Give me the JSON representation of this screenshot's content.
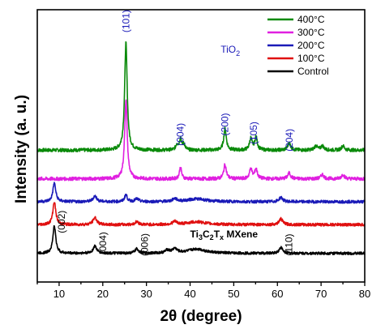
{
  "chart_data": {
    "type": "line",
    "xlabel": "2θ (degree)",
    "ylabel": "Intensity (a. u.)",
    "xlim": [
      5,
      80
    ],
    "xticks": [
      10,
      20,
      30,
      40,
      50,
      60,
      70,
      80
    ],
    "minor_xtick_step": 5,
    "legend_position": "top-right",
    "series": [
      {
        "name": "400°C",
        "color": "#0a8a0a",
        "baseline": 92,
        "noise": 1.2,
        "peaks": [
          [
            25.3,
            75,
            0.35
          ],
          [
            37.0,
            4,
            0.3
          ],
          [
            37.8,
            8,
            0.3
          ],
          [
            38.6,
            4,
            0.3
          ],
          [
            48.0,
            15,
            0.35
          ],
          [
            53.9,
            8,
            0.35
          ],
          [
            55.1,
            9,
            0.35
          ],
          [
            62.7,
            5,
            0.4
          ],
          [
            68.8,
            3,
            0.4
          ],
          [
            70.3,
            3,
            0.4
          ],
          [
            75.0,
            3,
            0.4
          ]
        ]
      },
      {
        "name": "300°C",
        "color": "#e020e0",
        "baseline": 72,
        "noise": 1.2,
        "peaks": [
          [
            25.3,
            55,
            0.35
          ],
          [
            37.8,
            8,
            0.3
          ],
          [
            48.0,
            10,
            0.35
          ],
          [
            53.9,
            7,
            0.35
          ],
          [
            55.1,
            7,
            0.35
          ],
          [
            62.7,
            4,
            0.4
          ],
          [
            70.3,
            3,
            0.4
          ],
          [
            75.0,
            3,
            0.4
          ]
        ]
      },
      {
        "name": "200°C",
        "color": "#1a1ab8",
        "baseline": 56,
        "noise": 1.0,
        "peaks": [
          [
            8.9,
            13,
            0.4
          ],
          [
            18.2,
            4,
            0.5
          ],
          [
            25.3,
            5,
            0.35
          ],
          [
            27.8,
            2,
            0.5
          ],
          [
            36.5,
            2,
            0.6
          ],
          [
            41.5,
            2,
            2.5
          ],
          [
            60.8,
            3,
            0.5
          ]
        ]
      },
      {
        "name": "100°C",
        "color": "#e01010",
        "baseline": 40,
        "noise": 1.0,
        "peaks": [
          [
            8.9,
            16,
            0.4
          ],
          [
            18.2,
            5,
            0.5
          ],
          [
            27.8,
            2,
            0.5
          ],
          [
            36.5,
            2,
            0.6
          ],
          [
            41.5,
            2,
            2.5
          ],
          [
            60.8,
            4,
            0.5
          ]
        ]
      },
      {
        "name": "Control",
        "color": "#000000",
        "baseline": 20,
        "noise": 0.9,
        "peaks": [
          [
            8.9,
            19,
            0.4
          ],
          [
            18.2,
            5,
            0.5
          ],
          [
            27.8,
            3,
            0.5
          ],
          [
            34.8,
            2,
            0.6
          ],
          [
            36.5,
            3,
            0.6
          ],
          [
            41.5,
            3,
            2.5
          ],
          [
            60.8,
            4,
            0.5
          ]
        ]
      }
    ],
    "annotations": [
      {
        "text": "(101)",
        "x": 25.3,
        "y": 182,
        "color": "#1a1ab8"
      },
      {
        "text": "(004)",
        "x": 37.8,
        "y": 103,
        "color": "#1a1ab8"
      },
      {
        "text": "(200)",
        "x": 48.0,
        "y": 110,
        "color": "#1a1ab8"
      },
      {
        "text": "(105)",
        "x": 54.6,
        "y": 104,
        "color": "#1a1ab8"
      },
      {
        "text": "(204)",
        "x": 62.7,
        "y": 99,
        "color": "#1a1ab8"
      },
      {
        "text": "(002)",
        "x": 10.6,
        "y": 42,
        "color": "#000000"
      },
      {
        "text": "(004)",
        "x": 20.0,
        "y": 27,
        "color": "#000000"
      },
      {
        "text": "(006)",
        "x": 29.6,
        "y": 26,
        "color": "#000000"
      },
      {
        "text": "(110)",
        "x": 62.6,
        "y": 26,
        "color": "#000000"
      }
    ],
    "phase_labels": [
      {
        "text": "TiO",
        "subscript": "2",
        "x": 47.0,
        "y": 160,
        "color": "#1a1ab8"
      },
      {
        "parts": [
          "Ti",
          "3",
          "C",
          "2",
          "T",
          "x",
          " MXene"
        ],
        "x": 40.0,
        "y": 31,
        "color": "#000000"
      }
    ]
  }
}
